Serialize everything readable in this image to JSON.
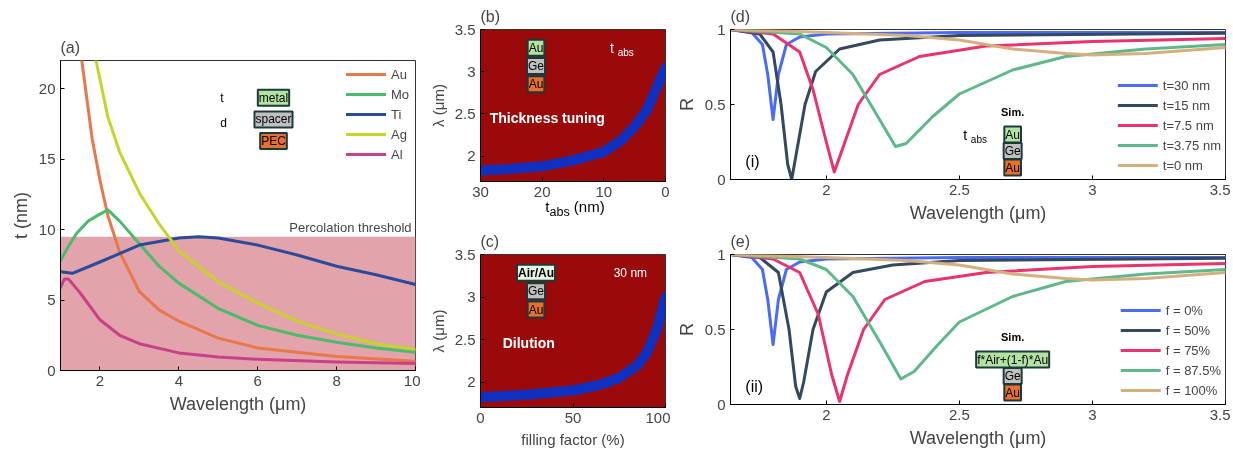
{
  "chart_data": [
    {
      "type": "line",
      "title": "(a)",
      "xlabel": "Wavelength (μm)",
      "ylabel": "t (nm)",
      "xlim": [
        1,
        10
      ],
      "ylim": [
        0,
        22
      ],
      "xticks": [
        2,
        4,
        6,
        8,
        10
      ],
      "yticks": [
        0,
        5,
        10,
        15,
        20
      ],
      "legend": "top right",
      "grid": false,
      "bands": [
        {
          "axis": "y",
          "from": 0,
          "to": 9.5,
          "label": "Percolation threshold",
          "color": "#e3a3aa"
        }
      ],
      "annotations": [
        "t",
        "d",
        "metal",
        "spacer",
        "PEC"
      ],
      "series": [
        {
          "name": "Au",
          "color": "#e8774a",
          "x": [
            1.54,
            1.8,
            2,
            2.2,
            2.5,
            3,
            3.5,
            4,
            5,
            6,
            8,
            10
          ],
          "values": [
            22,
            16.5,
            13.5,
            11,
            8.4,
            5.6,
            4.3,
            3.5,
            2.3,
            1.6,
            1.0,
            0.65
          ]
        },
        {
          "name": "Mo",
          "color": "#4cba6c",
          "x": [
            1,
            1.2,
            1.4,
            1.7,
            2,
            2.2,
            2.5,
            3,
            3.5,
            4,
            5,
            6,
            7,
            8,
            9,
            10
          ],
          "values": [
            7.8,
            8.8,
            9.7,
            10.6,
            11.1,
            11.4,
            10.6,
            9.0,
            7.4,
            6.2,
            4.4,
            3.2,
            2.5,
            2.0,
            1.6,
            1.3
          ]
        },
        {
          "name": "Ti",
          "color": "#2a4a9a",
          "x": [
            1,
            1.3,
            2,
            3,
            4,
            4.5,
            5,
            6,
            7,
            8,
            9,
            10
          ],
          "values": [
            7.0,
            6.9,
            7.7,
            8.9,
            9.4,
            9.5,
            9.4,
            8.9,
            8.2,
            7.4,
            6.8,
            6.1
          ]
        },
        {
          "name": "Ag",
          "color": "#c7d22a",
          "x": [
            1.9,
            2.2,
            2.5,
            3,
            3.5,
            4,
            5,
            6,
            7,
            8,
            9,
            10
          ],
          "values": [
            22,
            18,
            15.5,
            12.6,
            10.4,
            8.5,
            6.3,
            4.8,
            3.5,
            2.6,
            1.9,
            1.5
          ]
        },
        {
          "name": "Al",
          "color": "#c9408a",
          "x": [
            1,
            1.1,
            1.2,
            1.5,
            2,
            2.5,
            3,
            4,
            5,
            6,
            8,
            10
          ],
          "values": [
            5.9,
            6.5,
            6.5,
            5.5,
            3.6,
            2.5,
            1.9,
            1.25,
            0.95,
            0.8,
            0.6,
            0.5
          ]
        }
      ]
    },
    {
      "type": "line",
      "title": "(b)",
      "xlabel": "t$_{abs}$ (nm)",
      "ylabel": "λ (μm)",
      "xlim": [
        30,
        0
      ],
      "ylim": [
        1.7,
        3.5
      ],
      "xticks": [
        30,
        20,
        10,
        0
      ],
      "yticks": [
        2,
        2.5,
        3,
        3.5
      ],
      "color": "#9a0a0a",
      "annotations": [
        "Au",
        "Ge",
        "Au",
        "t$_{abs}$",
        "Thickness tuning"
      ],
      "series": [
        {
          "color": "#1030c0",
          "x": [
            30,
            25,
            20,
            15,
            10,
            7,
            5,
            3,
            1.5,
            0
          ],
          "values": [
            1.83,
            1.85,
            1.88,
            1.95,
            2.05,
            2.2,
            2.35,
            2.55,
            2.8,
            3.05
          ]
        }
      ]
    },
    {
      "type": "line",
      "title": "(c)",
      "xlabel": "filling factor (%)",
      "ylabel": "λ (μm)",
      "xlim": [
        0,
        100
      ],
      "ylim": [
        1.7,
        3.5
      ],
      "xticks": [
        0,
        50,
        100
      ],
      "yticks": [
        2,
        2.5,
        3,
        3.5
      ],
      "color": "#9a0a0a",
      "annotations": [
        "Air/Au",
        "Ge",
        "Au",
        "30 nm",
        "Dilution"
      ],
      "series": [
        {
          "color": "#1030c0",
          "x": [
            0,
            25,
            50,
            65,
            75,
            85,
            90,
            95,
            100
          ],
          "values": [
            1.82,
            1.85,
            1.9,
            1.97,
            2.05,
            2.2,
            2.35,
            2.6,
            3.0
          ]
        }
      ]
    },
    {
      "type": "line",
      "title": "(d)",
      "xlabel": "Wavelength (μm)",
      "ylabel": "R",
      "xlim": [
        1.64,
        3.5
      ],
      "ylim": [
        0,
        1
      ],
      "xticks": [
        2,
        2.5,
        3,
        3.5
      ],
      "yticks": [
        0,
        0.5,
        1
      ],
      "legend": "bottom right",
      "grid": false,
      "annotations": [
        "(i)",
        "Sim.",
        "t$_{abs}$",
        "Au",
        "Ge",
        "Au"
      ],
      "series": [
        {
          "name": "t=30 nm",
          "color": "#4a6cf0",
          "x": [
            1.64,
            1.72,
            1.76,
            1.78,
            1.8,
            1.82,
            1.85,
            1.9,
            2.0,
            2.5,
            3.5
          ],
          "values": [
            1,
            0.98,
            0.9,
            0.7,
            0.4,
            0.7,
            0.9,
            0.95,
            0.97,
            0.98,
            0.98
          ]
        },
        {
          "name": "t=15 nm",
          "color": "#34495e",
          "x": [
            1.64,
            1.75,
            1.8,
            1.83,
            1.855,
            1.87,
            1.885,
            1.92,
            1.96,
            2.05,
            2.2,
            2.5,
            3.5
          ],
          "values": [
            1,
            0.97,
            0.85,
            0.5,
            0.1,
            0.0,
            0.15,
            0.5,
            0.72,
            0.87,
            0.93,
            0.96,
            0.975
          ]
        },
        {
          "name": "t=7.5 nm",
          "color": "#e8336e",
          "x": [
            1.64,
            1.8,
            1.9,
            1.95,
            2.0,
            2.03,
            2.06,
            2.12,
            2.2,
            2.35,
            2.6,
            3,
            3.5
          ],
          "values": [
            1,
            0.97,
            0.85,
            0.6,
            0.25,
            0.05,
            0.2,
            0.5,
            0.7,
            0.82,
            0.89,
            0.92,
            0.94
          ]
        },
        {
          "name": "t=3.75 nm",
          "color": "#5fb88a",
          "x": [
            1.64,
            1.9,
            2.0,
            2.1,
            2.2,
            2.26,
            2.3,
            2.4,
            2.5,
            2.7,
            2.9,
            3.2,
            3.5
          ],
          "values": [
            1,
            0.97,
            0.88,
            0.7,
            0.4,
            0.22,
            0.24,
            0.42,
            0.57,
            0.73,
            0.82,
            0.87,
            0.9
          ]
        },
        {
          "name": "t=0 nm",
          "color": "#d4b080",
          "x": [
            1.64,
            2.0,
            2.3,
            2.5,
            2.7,
            2.9,
            3.0,
            3.2,
            3.5
          ],
          "values": [
            1,
            0.98,
            0.96,
            0.93,
            0.87,
            0.84,
            0.83,
            0.84,
            0.88
          ]
        }
      ]
    },
    {
      "type": "line",
      "title": "(e)",
      "xlabel": "Wavelength (μm)",
      "ylabel": "R",
      "xlim": [
        1.64,
        3.5
      ],
      "ylim": [
        0,
        1
      ],
      "xticks": [
        2,
        2.5,
        3,
        3.5
      ],
      "yticks": [
        0,
        0.5,
        1
      ],
      "legend": "bottom right",
      "grid": false,
      "annotations": [
        "(ii)",
        "Sim.",
        "f*Air+(1-f)*Au",
        "Ge",
        "Au"
      ],
      "series": [
        {
          "name": "f = 0%",
          "color": "#4a6cf0",
          "x": [
            1.64,
            1.72,
            1.76,
            1.78,
            1.8,
            1.82,
            1.85,
            1.9,
            2.0,
            2.5,
            3.5
          ],
          "values": [
            1,
            0.98,
            0.9,
            0.7,
            0.4,
            0.7,
            0.9,
            0.95,
            0.97,
            0.98,
            0.98
          ]
        },
        {
          "name": "f = 50%",
          "color": "#34495e",
          "x": [
            1.64,
            1.75,
            1.82,
            1.86,
            1.885,
            1.9,
            1.915,
            1.95,
            2.0,
            2.1,
            2.25,
            2.5,
            3.5
          ],
          "values": [
            1,
            0.98,
            0.88,
            0.5,
            0.12,
            0.04,
            0.15,
            0.5,
            0.75,
            0.88,
            0.93,
            0.96,
            0.975
          ]
        },
        {
          "name": "f = 75%",
          "color": "#e8336e",
          "x": [
            1.64,
            1.8,
            1.9,
            1.97,
            2.02,
            2.05,
            2.08,
            2.14,
            2.22,
            2.37,
            2.6,
            3,
            3.5
          ],
          "values": [
            1,
            0.97,
            0.88,
            0.6,
            0.2,
            0.02,
            0.2,
            0.5,
            0.7,
            0.82,
            0.88,
            0.92,
            0.94
          ]
        },
        {
          "name": "f = 87.5%",
          "color": "#5fb88a",
          "x": [
            1.64,
            1.9,
            2.0,
            2.1,
            2.2,
            2.28,
            2.33,
            2.42,
            2.5,
            2.7,
            2.9,
            3.2,
            3.5
          ],
          "values": [
            1,
            0.97,
            0.9,
            0.72,
            0.42,
            0.17,
            0.22,
            0.4,
            0.55,
            0.72,
            0.82,
            0.87,
            0.9
          ]
        },
        {
          "name": "f = 100%",
          "color": "#d4b080",
          "x": [
            1.64,
            2.0,
            2.3,
            2.5,
            2.7,
            2.9,
            3.0,
            3.2,
            3.5
          ],
          "values": [
            1,
            0.98,
            0.96,
            0.93,
            0.87,
            0.84,
            0.83,
            0.84,
            0.88
          ]
        }
      ]
    }
  ]
}
